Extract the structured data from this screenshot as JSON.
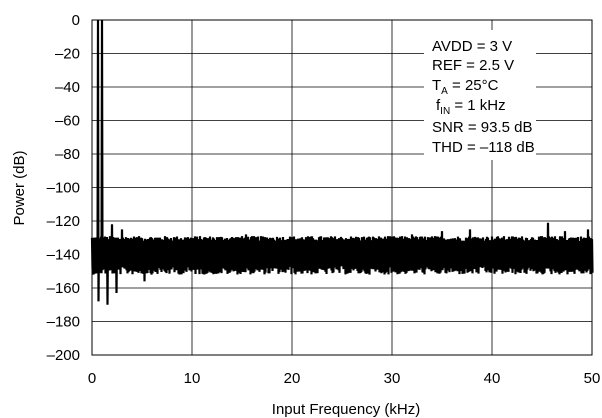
{
  "chart_data": {
    "type": "line",
    "title": "",
    "xlabel": "Input Frequency (kHz)",
    "ylabel": "Power (dB)",
    "xlim": [
      0,
      50
    ],
    "ylim": [
      -200,
      0
    ],
    "x_ticks": [
      0,
      10,
      20,
      30,
      40,
      50
    ],
    "y_ticks": [
      0,
      -20,
      -40,
      -60,
      -80,
      -100,
      -120,
      -140,
      -160,
      -180,
      -200
    ],
    "x_tick_labels": [
      "0",
      "10",
      "20",
      "30",
      "40",
      "50"
    ],
    "y_tick_labels": [
      "0",
      "–20",
      "–40",
      "–60",
      "–80",
      "–100",
      "–120",
      "–140",
      "–160",
      "–180",
      "–200"
    ],
    "grid": true,
    "line_color": "#000000",
    "series": [
      {
        "fundamental": {
          "x": 1,
          "y": 0
        },
        "harmonics": [
          {
            "x": 0.3,
            "y": -131
          },
          {
            "x": 2.0,
            "y": -122
          },
          {
            "x": 3.0,
            "y": -125
          }
        ],
        "noise_floor": {
          "x_start": 0,
          "x_end": 50,
          "typical_low": -147,
          "typical_high": -132,
          "median": -140
        },
        "spurs": [
          {
            "x": 0.6,
            "y": -168
          },
          {
            "x": 1.5,
            "y": -170
          },
          {
            "x": 2.4,
            "y": -163
          },
          {
            "x": 5.2,
            "y": -156
          },
          {
            "x": 15.4,
            "y": -128
          },
          {
            "x": 32.0,
            "y": -128
          },
          {
            "x": 35.0,
            "y": -126
          },
          {
            "x": 37.8,
            "y": -125
          },
          {
            "x": 45.6,
            "y": -121
          },
          {
            "x": 47.3,
            "y": -126
          },
          {
            "x": 49.6,
            "y": -125
          }
        ]
      }
    ],
    "annotations": {
      "avdd": "AVDD = 3 V",
      "ref": "REF = 2.5 V",
      "ta_main": "T",
      "ta_sub": "A",
      "ta_rest": " = 25°C",
      "fin_main": "f",
      "fin_sub": "IN",
      "fin_rest": " = 1 kHz",
      "snr": "SNR = 93.5 dB",
      "thd": "THD = –118 dB"
    }
  }
}
